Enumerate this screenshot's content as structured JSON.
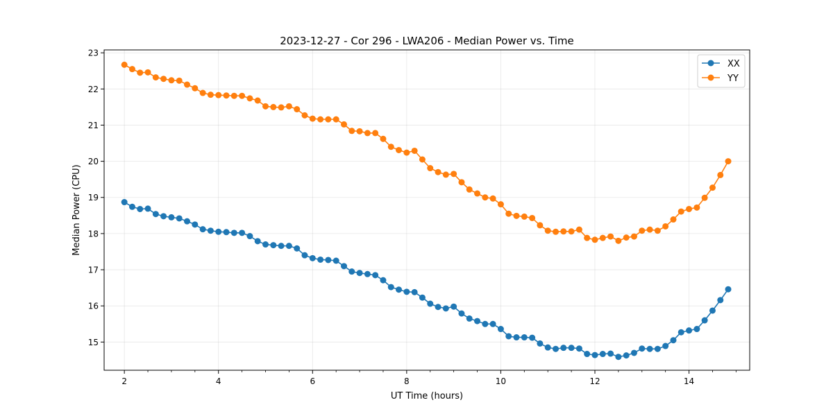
{
  "chart_data": {
    "type": "line",
    "title": "2023-12-27 - Cor 296 - LWA206 - Median Power vs. Time",
    "xlabel": "UT Time (hours)",
    "ylabel": "Median Power (CPU)",
    "xlim": [
      1.57,
      15.29
    ],
    "ylim": [
      14.22,
      23.08
    ],
    "xticks": [
      2,
      4,
      6,
      8,
      10,
      12,
      14
    ],
    "yticks": [
      15,
      16,
      17,
      18,
      19,
      20,
      21,
      22,
      23
    ],
    "xminor_step": 0.5,
    "grid": true,
    "legend_position": "top-right",
    "x": [
      2.0,
      2.167,
      2.333,
      2.5,
      2.667,
      2.833,
      3.0,
      3.167,
      3.333,
      3.5,
      3.667,
      3.833,
      4.0,
      4.167,
      4.333,
      4.5,
      4.667,
      4.833,
      5.0,
      5.167,
      5.333,
      5.5,
      5.667,
      5.833,
      6.0,
      6.167,
      6.333,
      6.5,
      6.667,
      6.833,
      7.0,
      7.167,
      7.333,
      7.5,
      7.667,
      7.833,
      8.0,
      8.167,
      8.333,
      8.5,
      8.667,
      8.833,
      9.0,
      9.167,
      9.333,
      9.5,
      9.667,
      9.833,
      10.0,
      10.167,
      10.333,
      10.5,
      10.667,
      10.833,
      11.0,
      11.167,
      11.333,
      11.5,
      11.667,
      11.833,
      12.0,
      12.167,
      12.333,
      12.5,
      12.667,
      12.833,
      13.0,
      13.167,
      13.333,
      13.5,
      13.667,
      13.833,
      14.0,
      14.167,
      14.333,
      14.5,
      14.667,
      14.833
    ],
    "series": [
      {
        "name": "XX",
        "color": "#1f77b4",
        "values": [
          18.87,
          18.74,
          18.68,
          18.69,
          18.54,
          18.48,
          18.45,
          18.42,
          18.34,
          18.25,
          18.12,
          18.08,
          18.05,
          18.04,
          18.02,
          18.02,
          17.93,
          17.79,
          17.7,
          17.68,
          17.66,
          17.66,
          17.59,
          17.4,
          17.32,
          17.28,
          17.27,
          17.25,
          17.1,
          16.95,
          16.91,
          16.88,
          16.85,
          16.71,
          16.52,
          16.45,
          16.39,
          16.38,
          16.23,
          16.06,
          15.97,
          15.93,
          15.98,
          15.79,
          15.65,
          15.58,
          15.5,
          15.5,
          15.36,
          15.16,
          15.13,
          15.13,
          15.12,
          14.96,
          14.85,
          14.81,
          14.84,
          14.84,
          14.82,
          14.67,
          14.64,
          14.67,
          14.68,
          14.59,
          14.63,
          14.7,
          14.82,
          14.81,
          14.81,
          14.89,
          15.05,
          15.27,
          15.32,
          15.36,
          15.6,
          15.87,
          16.16,
          16.46
        ]
      },
      {
        "name": "YY",
        "color": "#ff7f0e",
        "values": [
          22.67,
          22.55,
          22.45,
          22.46,
          22.32,
          22.28,
          22.24,
          22.23,
          22.12,
          22.02,
          21.89,
          21.84,
          21.83,
          21.82,
          21.81,
          21.81,
          21.74,
          21.68,
          21.52,
          21.5,
          21.49,
          21.52,
          21.44,
          21.27,
          21.18,
          21.16,
          21.16,
          21.16,
          21.02,
          20.84,
          20.83,
          20.78,
          20.78,
          20.62,
          20.4,
          20.31,
          20.24,
          20.29,
          20.05,
          19.81,
          19.7,
          19.63,
          19.65,
          19.42,
          19.22,
          19.11,
          19.0,
          18.97,
          18.81,
          18.55,
          18.49,
          18.47,
          18.43,
          18.23,
          18.08,
          18.05,
          18.06,
          18.06,
          18.11,
          17.88,
          17.83,
          17.88,
          17.92,
          17.8,
          17.89,
          17.92,
          18.08,
          18.11,
          18.08,
          18.2,
          18.39,
          18.61,
          18.68,
          18.72,
          18.99,
          19.27,
          19.62,
          20.0
        ]
      }
    ]
  }
}
